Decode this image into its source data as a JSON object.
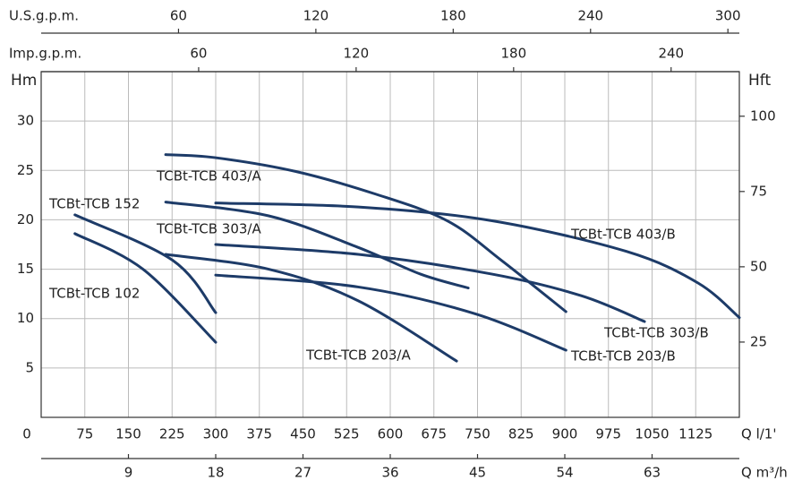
{
  "chart_data": {
    "type": "line",
    "y_label": "Hm",
    "y2_label": "Hft",
    "x_label": "Q l/1'",
    "x2_label": "Q m³/h",
    "top1_label": "U.S.g.p.m.",
    "top2_label": "Imp.g.p.m.",
    "xlim": [
      0,
      1200
    ],
    "xticks": [
      0,
      75,
      150,
      225,
      300,
      375,
      450,
      525,
      600,
      675,
      750,
      825,
      900,
      975,
      1050,
      1125
    ],
    "ylim": [
      0,
      35
    ],
    "yticks": [
      5,
      10,
      15,
      20,
      25,
      30
    ],
    "y2lim": [
      0,
      114.8
    ],
    "y2ticks": [
      25,
      50,
      75,
      100
    ],
    "m3h_lim": [
      0,
      72
    ],
    "m3h_ticks": [
      9,
      18,
      27,
      36,
      45,
      54,
      63
    ],
    "usgpm_lim": [
      0,
      305
    ],
    "usgpm_ticks": [
      60,
      120,
      180,
      240,
      300
    ],
    "impgpm_lim": [
      0,
      266
    ],
    "impgpm_ticks": [
      60,
      120,
      180,
      240
    ],
    "grid": true,
    "color": "#1d3b68",
    "series": [
      {
        "name": "TCBt-TCB 152",
        "x": [
          58,
          226,
          300
        ],
        "values": [
          20.5,
          15.9,
          10.6
        ]
      },
      {
        "name": "TCBt-TCB 102",
        "x": [
          58,
          175,
          300
        ],
        "values": [
          18.6,
          15,
          7.6
        ]
      },
      {
        "name": "TCBt-TCB 403/A",
        "x": [
          214,
          298,
          437,
          575,
          698,
          791,
          902
        ],
        "values": [
          26.6,
          26.3,
          24.9,
          22.6,
          19.9,
          15.9,
          10.7
        ]
      },
      {
        "name": "TCBt-TCB 303/A",
        "x": [
          214,
          391,
          545,
          652,
          734
        ],
        "values": [
          21.8,
          20.4,
          17.2,
          14.5,
          13.1
        ]
      },
      {
        "name": "TCBt-TCB 403/B",
        "x": [
          300,
          545,
          775,
          1006,
          1129,
          1200
        ],
        "values": [
          21.7,
          21.3,
          19.9,
          16.8,
          13.6,
          10.1
        ]
      },
      {
        "name": "TCBt-TCB 303/B",
        "x": [
          300,
          545,
          775,
          929,
          1037
        ],
        "values": [
          17.5,
          16.5,
          14.5,
          12.3,
          9.7
        ]
      },
      {
        "name": "TCBt-TCB 203/A",
        "x": [
          214,
          391,
          545,
          714
        ],
        "values": [
          16.5,
          15,
          11.8,
          5.7
        ]
      },
      {
        "name": "TCBt-TCB 203/B",
        "x": [
          300,
          545,
          745,
          902
        ],
        "values": [
          14.4,
          13.2,
          10.5,
          6.8
        ]
      }
    ]
  }
}
